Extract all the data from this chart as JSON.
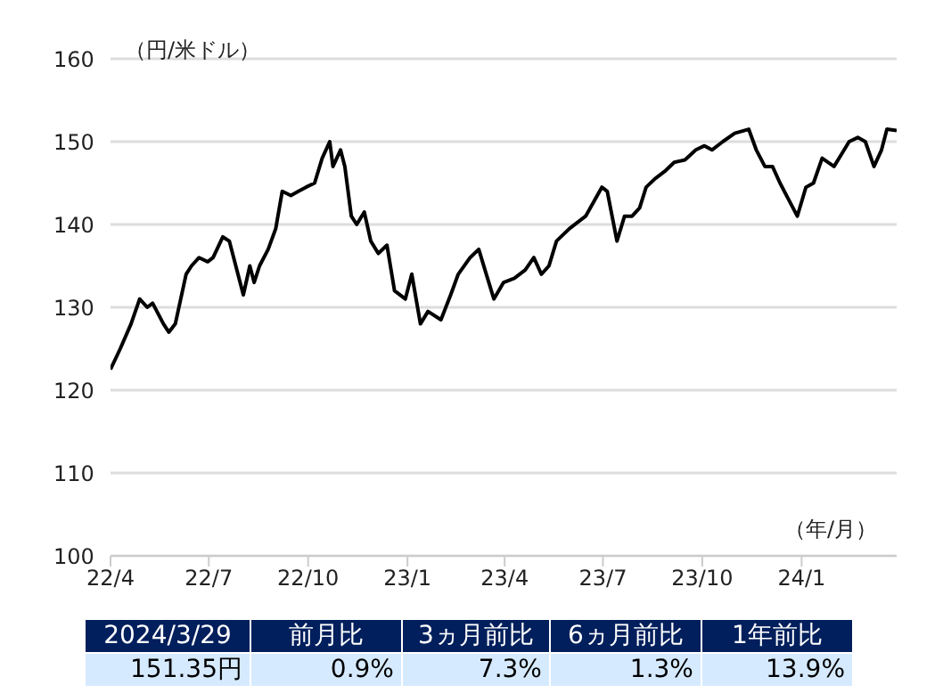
{
  "chart_data": {
    "type": "line",
    "ylabel": "（円/米ドル）",
    "xlabel": "（年/月）",
    "xlim": [
      "2022-04-01",
      "2024-03-29"
    ],
    "xticks": [
      {
        "value": "2022-04-01",
        "label": "22/4"
      },
      {
        "value": "2022-07-01",
        "label": "22/7"
      },
      {
        "value": "2022-10-01",
        "label": "22/10"
      },
      {
        "value": "2023-01-01",
        "label": "23/1"
      },
      {
        "value": "2023-04-01",
        "label": "23/4"
      },
      {
        "value": "2023-07-01",
        "label": "23/7"
      },
      {
        "value": "2023-10-01",
        "label": "23/10"
      },
      {
        "value": "2024-01-01",
        "label": "24/1"
      }
    ],
    "ylim": [
      100,
      160
    ],
    "yticks": [
      100,
      110,
      120,
      130,
      140,
      150,
      160
    ],
    "grid": "y",
    "x": [
      "2022-04-01",
      "2022-04-10",
      "2022-04-20",
      "2022-04-28",
      "2022-05-05",
      "2022-05-10",
      "2022-05-20",
      "2022-05-25",
      "2022-05-31",
      "2022-06-10",
      "2022-06-15",
      "2022-06-22",
      "2022-06-30",
      "2022-07-05",
      "2022-07-14",
      "2022-07-20",
      "2022-07-28",
      "2022-08-02",
      "2022-08-08",
      "2022-08-12",
      "2022-08-17",
      "2022-08-25",
      "2022-09-01",
      "2022-09-07",
      "2022-09-15",
      "2022-09-22",
      "2022-09-29",
      "2022-10-07",
      "2022-10-14",
      "2022-10-21",
      "2022-10-24",
      "2022-10-31",
      "2022-11-04",
      "2022-11-10",
      "2022-11-15",
      "2022-11-22",
      "2022-11-28",
      "2022-12-05",
      "2022-12-13",
      "2022-12-20",
      "2022-12-30",
      "2023-01-05",
      "2023-01-13",
      "2023-01-20",
      "2023-02-01",
      "2023-02-10",
      "2023-02-17",
      "2023-02-28",
      "2023-03-08",
      "2023-03-15",
      "2023-03-22",
      "2023-03-31",
      "2023-04-10",
      "2023-04-20",
      "2023-04-28",
      "2023-05-05",
      "2023-05-12",
      "2023-05-19",
      "2023-05-31",
      "2023-06-15",
      "2023-06-30",
      "2023-07-05",
      "2023-07-14",
      "2023-07-21",
      "2023-07-28",
      "2023-08-04",
      "2023-08-10",
      "2023-08-18",
      "2023-08-28",
      "2023-09-05",
      "2023-09-15",
      "2023-09-25",
      "2023-10-03",
      "2023-10-10",
      "2023-10-20",
      "2023-10-31",
      "2023-11-13",
      "2023-11-20",
      "2023-11-28",
      "2023-12-05",
      "2023-12-12",
      "2023-12-20",
      "2023-12-28",
      "2024-01-05",
      "2024-01-12",
      "2024-01-20",
      "2024-01-31",
      "2024-02-07",
      "2024-02-14",
      "2024-02-22",
      "2024-02-29",
      "2024-03-08",
      "2024-03-15",
      "2024-03-20",
      "2024-03-29"
    ],
    "series": [
      {
        "color": "#000000",
        "values": [
          122.5,
          125,
          128,
          131,
          130,
          130.5,
          128,
          127,
          128,
          134,
          135,
          136,
          135.5,
          136,
          138.5,
          138,
          134,
          131.5,
          135,
          133,
          135,
          137,
          139.5,
          144,
          143.5,
          144,
          144.5,
          145,
          148,
          150,
          147,
          149,
          147,
          141,
          140,
          141.5,
          138,
          136.5,
          137.5,
          132,
          131,
          134,
          128,
          129.5,
          128.5,
          131.5,
          134,
          136,
          137,
          134,
          131,
          133,
          133.5,
          134.5,
          136,
          134,
          135,
          138,
          139.5,
          141,
          144.5,
          144,
          138,
          141,
          141,
          142,
          144.5,
          145.5,
          146.5,
          147.5,
          147.8,
          149,
          149.5,
          149,
          150,
          151,
          151.5,
          149,
          147,
          147,
          145,
          143,
          141,
          144.5,
          145,
          148,
          147,
          148.5,
          150,
          150.5,
          150,
          147,
          149,
          151.5,
          151.35
        ]
      }
    ],
    "annotations": [
      "2024/3/29",
      "前月比",
      "3ヵ月前比",
      "6ヵ月前比",
      "1年前比",
      "151.35円",
      "0.9%",
      "7.3%",
      "1.3%",
      "13.9%"
    ]
  }
}
